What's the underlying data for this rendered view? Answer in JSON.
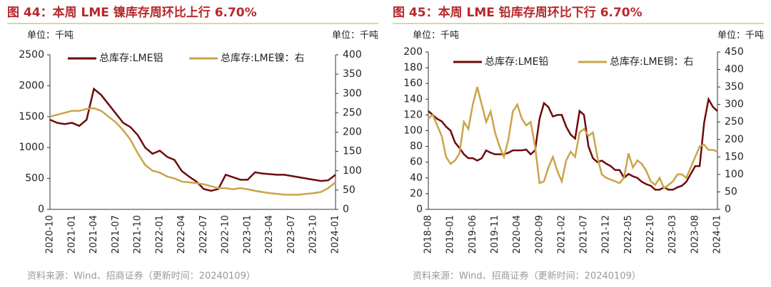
{
  "chart_data": [
    {
      "type": "line",
      "title": "图 44：本周 LME 镍库存周环比上行 6.70%",
      "unit_left": "单位：千吨",
      "unit_right": "单位：千吨",
      "source": "资料来源：Wind、招商证券（更新时间：20240109）",
      "categories": [
        "2020-10",
        null,
        null,
        "2021-01",
        null,
        null,
        "2021-04",
        null,
        null,
        "2021-07",
        null,
        null,
        "2021-10",
        null,
        null,
        "2022-01",
        null,
        null,
        "2022-04",
        null,
        null,
        "2022-07",
        null,
        null,
        "2022-10",
        null,
        null,
        "2023-01",
        null,
        null,
        "2023-04",
        null,
        null,
        "2023-07",
        null,
        null,
        "2023-10",
        null,
        null,
        "2024-01"
      ],
      "ylim": [
        0,
        2500
      ],
      "yticks": [
        0,
        500,
        1000,
        1500,
        2000,
        2500
      ],
      "y2lim": [
        0,
        400
      ],
      "y2ticks": [
        0,
        50,
        100,
        150,
        200,
        250,
        300,
        350,
        400
      ],
      "series": [
        {
          "name": "总库存:LME铝",
          "color": "#6e0b0b",
          "values": [
            1450,
            1400,
            1380,
            1400,
            1350,
            1450,
            1950,
            1850,
            1700,
            1550,
            1400,
            1330,
            1200,
            1000,
            900,
            950,
            850,
            800,
            620,
            530,
            450,
            330,
            300,
            330,
            560,
            520,
            480,
            480,
            600,
            580,
            570,
            560,
            560,
            540,
            520,
            500,
            480,
            460,
            470,
            560
          ]
        },
        {
          "name": "总库存:LME镍：右",
          "color": "#c9a449",
          "axis": "y2",
          "values": [
            240,
            245,
            250,
            255,
            255,
            260,
            262,
            255,
            240,
            225,
            205,
            180,
            145,
            115,
            100,
            95,
            85,
            80,
            72,
            70,
            68,
            65,
            60,
            55,
            55,
            52,
            55,
            52,
            48,
            45,
            42,
            40,
            38,
            38,
            38,
            40,
            42,
            45,
            55,
            70
          ]
        }
      ]
    },
    {
      "type": "line",
      "title": "图 45：本周 LME 铅库存周环比下行 6.70%",
      "unit_left": "单位：千吨",
      "unit_right": "单位：千吨",
      "source": "资料来源：Wind、招商证券（更新时间：20240109）",
      "categories": [
        "2018-08",
        null,
        null,
        null,
        null,
        "2019-01",
        null,
        null,
        null,
        null,
        "2019-06",
        null,
        null,
        null,
        null,
        "2019-11",
        null,
        null,
        null,
        null,
        "2020-04",
        null,
        null,
        null,
        null,
        "2020-09",
        null,
        null,
        null,
        null,
        "2021-02",
        null,
        null,
        null,
        null,
        "2021-07",
        null,
        null,
        null,
        null,
        "2021-12",
        null,
        null,
        null,
        null,
        "2022-05",
        null,
        null,
        null,
        null,
        "2022-10",
        null,
        null,
        null,
        null,
        "2023-03",
        null,
        null,
        null,
        null,
        "2023-08",
        null,
        null,
        null,
        null,
        "2024-01"
      ],
      "ylim": [
        0,
        200
      ],
      "yticks": [
        0,
        20,
        40,
        60,
        80,
        100,
        120,
        140,
        160,
        180,
        200
      ],
      "y2lim": [
        0,
        450
      ],
      "y2ticks": [
        0,
        50,
        100,
        150,
        200,
        250,
        300,
        350,
        400,
        450
      ],
      "series": [
        {
          "name": "总库存:LME铅",
          "color": "#6e0b0b",
          "values": [
            125,
            120,
            115,
            112,
            105,
            100,
            85,
            78,
            70,
            65,
            65,
            62,
            65,
            75,
            72,
            70,
            70,
            70,
            72,
            75,
            75,
            75,
            76,
            70,
            75,
            115,
            135,
            130,
            118,
            120,
            120,
            105,
            95,
            90,
            125,
            120,
            80,
            65,
            60,
            62,
            58,
            55,
            50,
            50,
            40,
            45,
            42,
            40,
            35,
            32,
            30,
            25,
            25,
            28,
            25,
            25,
            28,
            30,
            35,
            45,
            55,
            55,
            110,
            140,
            130,
            125
          ]
        },
        {
          "name": "总库存:LME铜：右",
          "color": "#c9a449",
          "axis": "y2",
          "values": [
            260,
            270,
            240,
            210,
            150,
            130,
            140,
            160,
            250,
            230,
            300,
            350,
            300,
            250,
            280,
            220,
            180,
            150,
            200,
            280,
            300,
            260,
            240,
            250,
            180,
            75,
            80,
            120,
            150,
            110,
            80,
            140,
            165,
            150,
            220,
            230,
            210,
            220,
            150,
            100,
            90,
            85,
            80,
            75,
            90,
            160,
            120,
            140,
            130,
            110,
            80,
            70,
            90,
            60,
            70,
            80,
            100,
            100,
            90,
            120,
            150,
            180,
            185,
            170,
            170,
            165
          ]
        }
      ]
    }
  ]
}
